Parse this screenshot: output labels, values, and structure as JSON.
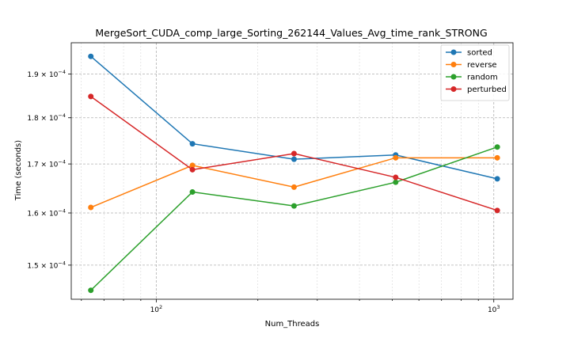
{
  "chart_data": {
    "type": "line",
    "title": "MergeSort_CUDA_comp_large_Sorting_262144_Values_Avg_time_rank_STRONG",
    "xlabel": "Num_Threads",
    "ylabel": "Time (seconds)",
    "x_scale": "log",
    "y_scale": "log",
    "xlim": [
      56,
      1140
    ],
    "ylim": [
      0.0001438,
      0.0001975
    ],
    "x": [
      64,
      128,
      256,
      512,
      1024
    ],
    "x_tick_labels": [
      {
        "value": 100,
        "mantissa": "10",
        "exp": "2"
      },
      {
        "value": 1000,
        "mantissa": "10",
        "exp": "3"
      }
    ],
    "y_tick_labels": [
      {
        "value": 0.00015,
        "text": "1.5 × 10",
        "exp": "−4"
      },
      {
        "value": 0.00016,
        "text": "1.6 × 10",
        "exp": "−4"
      },
      {
        "value": 0.00017,
        "text": "1.7 × 10",
        "exp": "−4"
      },
      {
        "value": 0.00018,
        "text": "1.8 × 10",
        "exp": "−4"
      },
      {
        "value": 0.00019,
        "text": "1.9 × 10",
        "exp": "−4"
      }
    ],
    "grid": true,
    "legend_position": "top-right",
    "series": [
      {
        "name": "sorted",
        "color": "#1f77b4",
        "values": [
          0.0001942,
          0.0001743,
          0.000171,
          0.0001719,
          0.0001669
        ]
      },
      {
        "name": "reverse",
        "color": "#ff7f0e",
        "values": [
          0.0001611,
          0.0001697,
          0.0001652,
          0.0001713,
          0.0001713
        ]
      },
      {
        "name": "random",
        "color": "#2ca02c",
        "values": [
          0.0001454,
          0.0001642,
          0.0001614,
          0.0001662,
          0.0001736
        ]
      },
      {
        "name": "perturbed",
        "color": "#d62728",
        "values": [
          0.0001848,
          0.0001688,
          0.0001722,
          0.0001672,
          0.0001605
        ]
      }
    ]
  }
}
